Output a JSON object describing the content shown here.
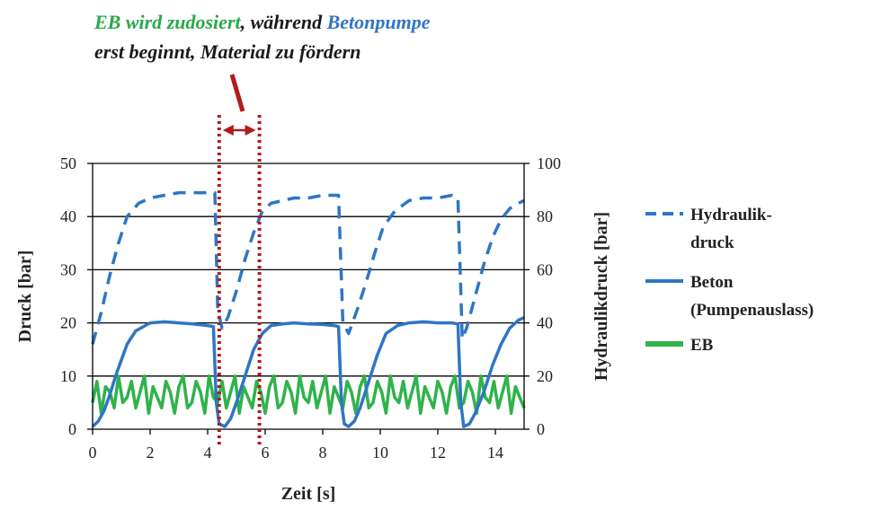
{
  "chart_data": {
    "type": "line",
    "title": "",
    "annotation": {
      "line1": [
        {
          "text": "EB wird zudosiert",
          "color": "#2aa84a"
        },
        {
          "text": ", während ",
          "color": "#1a1a1a"
        },
        {
          "text": "Betonpumpe",
          "color": "#2f75c5"
        }
      ],
      "line2": "erst beginnt, Material zu fördern",
      "line2_color": "#1a1a1a",
      "marker_color": "#b01c1c",
      "interval_x": [
        4.4,
        5.8
      ]
    },
    "xlabel": "Zeit [s]",
    "ylabel": "Druck [bar]",
    "ylabel_right": "Hydraulikdruck [bar]",
    "xlim": [
      0,
      15
    ],
    "ylim": [
      0,
      50
    ],
    "ylim_right": [
      0,
      100
    ],
    "xticks": [
      "0",
      "2",
      "4",
      "6",
      "8",
      "10",
      "12",
      "14"
    ],
    "yticks": [
      "0",
      "10",
      "20",
      "30",
      "40",
      "50"
    ],
    "yticks_right": [
      "0",
      "20",
      "40",
      "60",
      "80",
      "100"
    ],
    "grid": "horizontal",
    "legend": "right",
    "legend_labels": [
      "Hydraulik-",
      "druck",
      "Beton",
      "(Pumpenauslass)",
      "EB"
    ],
    "series": [
      {
        "name": "Hydraulikdruck",
        "axis": "right",
        "style": "dashed",
        "color": "#2f75c5",
        "x": [
          0,
          0.3,
          0.6,
          0.9,
          1.2,
          1.6,
          2.0,
          2.5,
          3.0,
          3.5,
          4.0,
          4.25,
          4.35,
          4.5,
          4.7,
          5.0,
          5.3,
          5.6,
          5.9,
          6.2,
          6.6,
          7.0,
          7.5,
          8.0,
          8.4,
          8.55,
          8.7,
          8.9,
          9.2,
          9.5,
          9.8,
          10.1,
          10.5,
          11.0,
          11.5,
          12.0,
          12.5,
          12.7,
          12.85,
          13.0,
          13.3,
          13.6,
          13.9,
          14.2,
          14.5,
          14.8,
          15.0
        ],
        "values": [
          32,
          44,
          58,
          70,
          80,
          85,
          87,
          88,
          89,
          89,
          89,
          89,
          45,
          38,
          42,
          52,
          64,
          74,
          82,
          85,
          86,
          87,
          87,
          88,
          88,
          88,
          40,
          36,
          45,
          55,
          66,
          76,
          82,
          86,
          87,
          87,
          88,
          87,
          34,
          38,
          50,
          62,
          72,
          79,
          83,
          85,
          86
        ]
      },
      {
        "name": "Beton (Pumpenauslass)",
        "axis": "left",
        "style": "solid",
        "color": "#2f75c5",
        "x": [
          0,
          0.2,
          0.4,
          0.6,
          0.8,
          1.0,
          1.2,
          1.5,
          2.0,
          2.5,
          3.0,
          3.5,
          4.0,
          4.2,
          4.3,
          4.4,
          4.6,
          4.8,
          5.0,
          5.3,
          5.6,
          5.9,
          6.2,
          6.6,
          7.0,
          7.5,
          8.0,
          8.4,
          8.55,
          8.65,
          8.75,
          8.9,
          9.1,
          9.3,
          9.6,
          9.9,
          10.2,
          10.6,
          11.0,
          11.5,
          12.0,
          12.5,
          12.7,
          12.8,
          12.9,
          13.1,
          13.3,
          13.6,
          13.9,
          14.2,
          14.5,
          14.8,
          15.0
        ],
        "values": [
          0.5,
          1.5,
          3.5,
          6.5,
          10,
          13,
          16,
          18.5,
          20,
          20.2,
          20,
          19.8,
          19.5,
          19.3,
          5,
          1,
          0.5,
          2,
          5,
          10,
          15,
          18,
          19.5,
          19.8,
          20,
          19.8,
          19.7,
          19.5,
          19.3,
          5,
          1,
          0.5,
          1.5,
          4,
          9,
          14,
          18,
          19.5,
          20,
          20.2,
          20,
          20,
          19.8,
          5,
          0.5,
          1,
          3,
          7,
          12,
          16,
          19,
          20.5,
          21
        ]
      },
      {
        "name": "EB",
        "axis": "left",
        "style": "solid",
        "color": "#2fb34a",
        "x0": 0,
        "dx": 0.15,
        "values": [
          5,
          9,
          3,
          8,
          7,
          4,
          10,
          5,
          6,
          9,
          4,
          7,
          10,
          3,
          8,
          6,
          4,
          9,
          7,
          3,
          8,
          10,
          4,
          5,
          9,
          7,
          3,
          10,
          6,
          5,
          9,
          4,
          7,
          10,
          3,
          8,
          6,
          4,
          9,
          7,
          3,
          8,
          10,
          4,
          5,
          9,
          7,
          3,
          10,
          6,
          5,
          9,
          4,
          7,
          10,
          3,
          8,
          6,
          4,
          9,
          7,
          3,
          8,
          10,
          4,
          5,
          9,
          7,
          3,
          10,
          6,
          5,
          9,
          4,
          7,
          10,
          3,
          8,
          6,
          4,
          9,
          7,
          3,
          8,
          10,
          4,
          5,
          9,
          7,
          3,
          10,
          6,
          5,
          9,
          4,
          7,
          10,
          3,
          8,
          6,
          4
        ]
      }
    ]
  }
}
